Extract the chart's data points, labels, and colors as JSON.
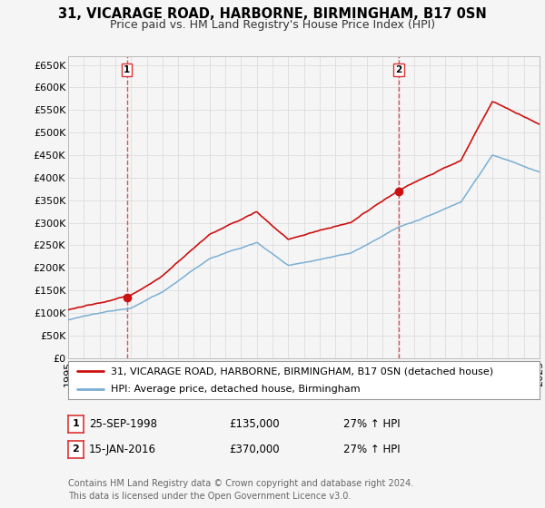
{
  "title": "31, VICARAGE ROAD, HARBORNE, BIRMINGHAM, B17 0SN",
  "subtitle": "Price paid vs. HM Land Registry's House Price Index (HPI)",
  "ylabel_ticks": [
    "£0",
    "£50K",
    "£100K",
    "£150K",
    "£200K",
    "£250K",
    "£300K",
    "£350K",
    "£400K",
    "£450K",
    "£500K",
    "£550K",
    "£600K",
    "£650K"
  ],
  "ytick_values": [
    0,
    50000,
    100000,
    150000,
    200000,
    250000,
    300000,
    350000,
    400000,
    450000,
    500000,
    550000,
    600000,
    650000
  ],
  "ylim": [
    0,
    670000
  ],
  "sale1_date_num": 1998.73,
  "sale1_price": 135000,
  "sale2_date_num": 2016.04,
  "sale2_price": 370000,
  "legend_line1": "31, VICARAGE ROAD, HARBORNE, BIRMINGHAM, B17 0SN (detached house)",
  "legend_line2": "HPI: Average price, detached house, Birmingham",
  "table_row1": [
    "1",
    "25-SEP-1998",
    "£135,000",
    "27% ↑ HPI"
  ],
  "table_row2": [
    "2",
    "15-JAN-2016",
    "£370,000",
    "27% ↑ HPI"
  ],
  "footer": "Contains HM Land Registry data © Crown copyright and database right 2024.\nThis data is licensed under the Open Government Licence v3.0.",
  "hpi_color": "#7bafd4",
  "price_color": "#cc1111",
  "vline_color": "#dd3333",
  "bg_color": "#f5f5f5",
  "grid_color": "#dddddd",
  "title_fontsize": 10.5,
  "subtitle_fontsize": 9,
  "tick_fontsize": 8,
  "legend_fontsize": 8,
  "footer_fontsize": 7
}
